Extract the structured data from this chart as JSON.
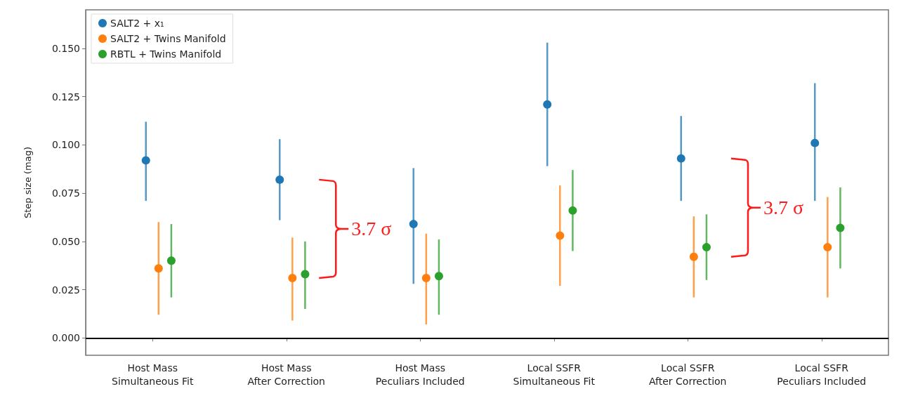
{
  "chart_data": {
    "type": "scatter",
    "ylabel": "Step size (mag)",
    "categories": [
      "Host Mass\nSimultaneous Fit",
      "Host Mass\nAfter Correction",
      "Host Mass\nPeculiars Included",
      "Local SSFR\nSimultaneous Fit",
      "Local SSFR\nAfter Correction",
      "Local SSFR\nPeculiars Included"
    ],
    "ylim": [
      -0.009,
      0.17
    ],
    "yticks": [
      {
        "value": 0,
        "label": "0.000"
      },
      {
        "value": 0.025,
        "label": "0.025"
      },
      {
        "value": 0.05,
        "label": "0.050"
      },
      {
        "value": 0.075,
        "label": "0.075"
      },
      {
        "value": 0.1,
        "label": "0.100"
      },
      {
        "value": 0.125,
        "label": "0.125"
      },
      {
        "value": 0.15,
        "label": "0.150"
      }
    ],
    "series": [
      {
        "name": "SALT2 + x₁",
        "color": "#1f77b4",
        "values": [
          0.092,
          0.082,
          0.059,
          0.121,
          0.093,
          0.101
        ],
        "errors": [
          [
            0.071,
            0.112
          ],
          [
            0.061,
            0.103
          ],
          [
            0.028,
            0.088
          ],
          [
            0.089,
            0.153
          ],
          [
            0.071,
            0.115
          ],
          [
            0.071,
            0.132
          ]
        ]
      },
      {
        "name": "SALT2 + Twins Manifold",
        "color": "#ff7f0e",
        "values": [
          0.036,
          0.031,
          0.031,
          0.053,
          0.042,
          0.047
        ],
        "errors": [
          [
            0.012,
            0.06
          ],
          [
            0.009,
            0.052
          ],
          [
            0.007,
            0.054
          ],
          [
            0.027,
            0.079
          ],
          [
            0.021,
            0.063
          ],
          [
            0.021,
            0.073
          ]
        ]
      },
      {
        "name": "RBTL + Twins Manifold",
        "color": "#2ca02c",
        "values": [
          0.04,
          0.033,
          0.032,
          0.066,
          0.047,
          0.057
        ],
        "errors": [
          [
            0.021,
            0.059
          ],
          [
            0.015,
            0.05
          ],
          [
            0.012,
            0.051
          ],
          [
            0.045,
            0.087
          ],
          [
            0.03,
            0.064
          ],
          [
            0.036,
            0.078
          ]
        ]
      }
    ],
    "ref_lines": [
      {
        "axis": "y",
        "value": 0,
        "color": "#000000"
      }
    ],
    "annotations": [
      "3.7 σ",
      "3.7 σ"
    ],
    "marker": "circle",
    "legend": "top left",
    "grid": false
  }
}
